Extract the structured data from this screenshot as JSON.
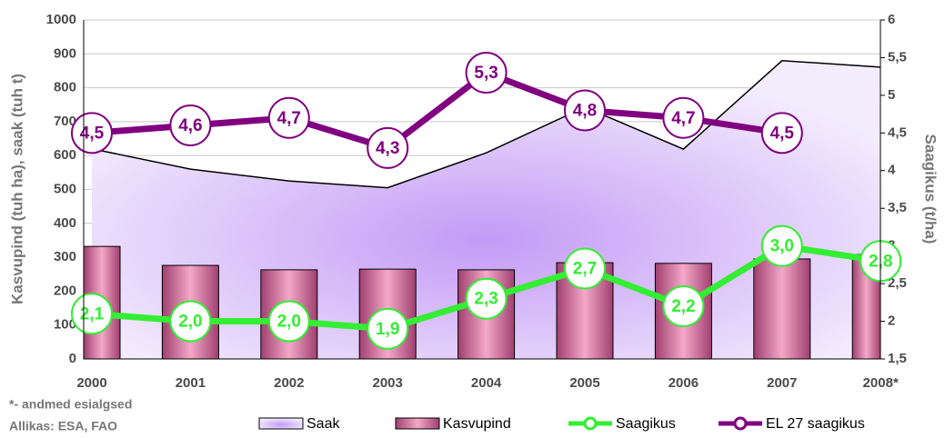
{
  "chart_data": {
    "type": "combo",
    "y_label": "Kasvupind (tuh ha), saak (tuh t)",
    "y2_label": "Saagikus (t/ha)",
    "notes": [
      "*- andmed esialgsed",
      "Allikas: ESA, FAO"
    ],
    "categories": [
      "2000",
      "2001",
      "2002",
      "2003",
      "2004",
      "2005",
      "2006",
      "2007",
      "2008*"
    ],
    "ylim": [
      0,
      1000
    ],
    "yticks": [
      0,
      100,
      200,
      300,
      400,
      500,
      600,
      700,
      800,
      900,
      1000
    ],
    "y2lim": [
      1.5,
      6
    ],
    "y2ticks": [
      {
        "value": 1.5,
        "label": "1,5"
      },
      2,
      {
        "value": 2.5,
        "label": "2,5"
      },
      3,
      {
        "value": 3.5,
        "label": "3,5"
      },
      4,
      {
        "value": 4.5,
        "label": "4,5"
      },
      5,
      {
        "value": 5.5,
        "label": "5,5"
      },
      6
    ],
    "grid": true,
    "series": [
      {
        "name": "Saak",
        "kind": "area",
        "color": "#c9a6f5",
        "values": [
          620,
          560,
          525,
          505,
          608,
          743,
          619,
          880,
          861
        ]
      },
      {
        "name": "Kasvupind",
        "kind": "bar",
        "color": "#c85a8a",
        "values": [
          332,
          276,
          263,
          265,
          263,
          284,
          282,
          295,
          308
        ]
      },
      {
        "name": "Saagikus",
        "kind": "line",
        "axis": "y2",
        "color": "#33ee33",
        "values": [
          2.1,
          2.0,
          2.0,
          1.9,
          2.3,
          2.7,
          2.2,
          3.0,
          2.8
        ],
        "value_labels": [
          "2,1",
          "2,0",
          "2,0",
          "1,9",
          "2,3",
          "2,7",
          "2,2",
          "3,0",
          "2,8"
        ]
      },
      {
        "name": "EL 27 saagikus",
        "kind": "line",
        "axis": "y2",
        "color": "#800080",
        "values": [
          4.5,
          4.6,
          4.7,
          4.3,
          5.3,
          4.8,
          4.7,
          4.5,
          null
        ],
        "value_labels": [
          "4,5",
          "4,6",
          "4,7",
          "4,3",
          "5,3",
          "4,8",
          "4,7",
          "4,5",
          null
        ]
      }
    ]
  }
}
